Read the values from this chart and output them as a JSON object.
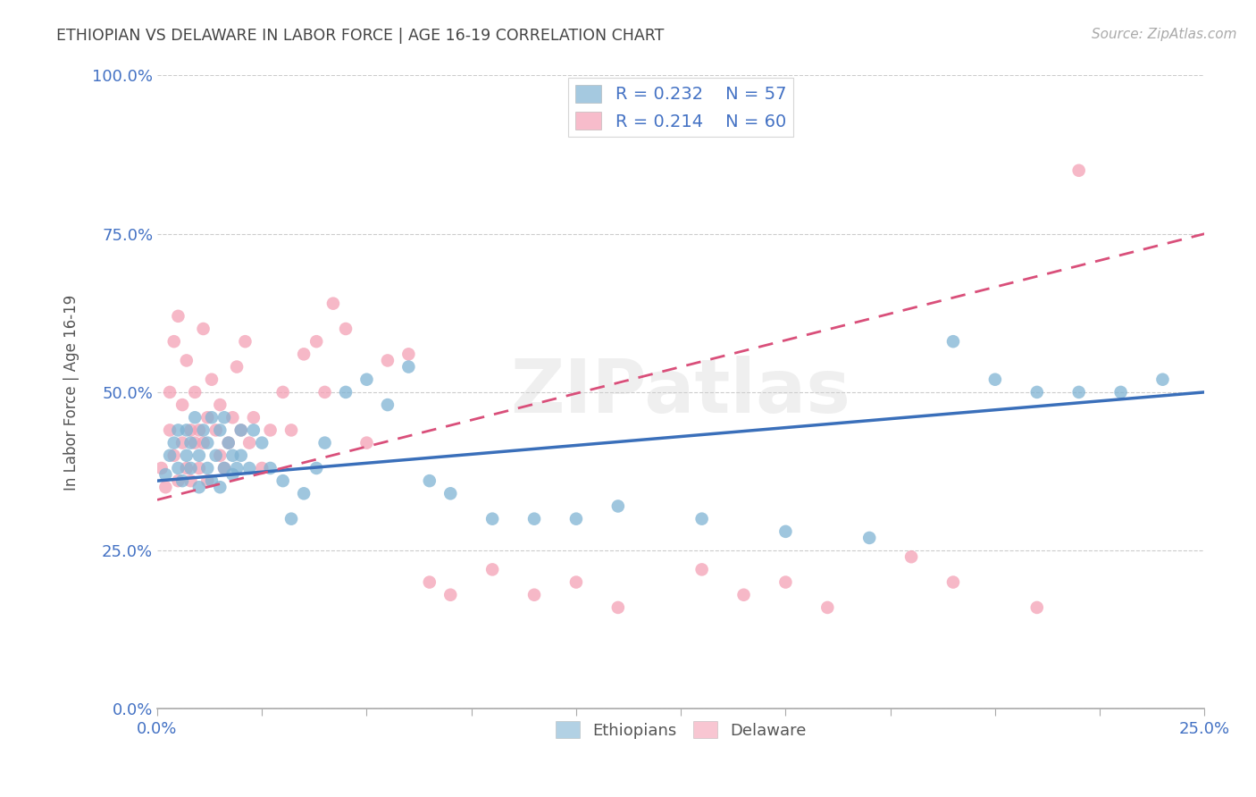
{
  "title": "ETHIOPIAN VS DELAWARE IN LABOR FORCE | AGE 16-19 CORRELATION CHART",
  "source_text": "Source: ZipAtlas.com",
  "ylabel": "In Labor Force | Age 16-19",
  "xlim": [
    0.0,
    0.25
  ],
  "ylim": [
    0.0,
    1.0
  ],
  "yticks": [
    0.0,
    0.25,
    0.5,
    0.75,
    1.0
  ],
  "ytick_labels": [
    "0.0%",
    "25.0%",
    "50.0%",
    "75.0%",
    "100.0%"
  ],
  "watermark": "ZIPatlas",
  "blue_dot_color": "#7fb3d3",
  "pink_dot_color": "#f4a0b5",
  "trend_blue_color": "#3a6fba",
  "trend_pink_color": "#d94f7a",
  "axis_color": "#4472c4",
  "title_color": "#444444",
  "grid_color": "#cccccc",
  "blue_scatter_x": [
    0.002,
    0.003,
    0.004,
    0.005,
    0.005,
    0.006,
    0.007,
    0.007,
    0.008,
    0.008,
    0.009,
    0.01,
    0.01,
    0.011,
    0.012,
    0.012,
    0.013,
    0.013,
    0.014,
    0.015,
    0.015,
    0.016,
    0.016,
    0.017,
    0.018,
    0.018,
    0.019,
    0.02,
    0.02,
    0.022,
    0.023,
    0.025,
    0.027,
    0.03,
    0.032,
    0.035,
    0.038,
    0.04,
    0.045,
    0.05,
    0.055,
    0.06,
    0.065,
    0.07,
    0.08,
    0.09,
    0.1,
    0.11,
    0.13,
    0.15,
    0.17,
    0.19,
    0.2,
    0.21,
    0.22,
    0.23,
    0.24
  ],
  "blue_scatter_y": [
    0.37,
    0.4,
    0.42,
    0.38,
    0.44,
    0.36,
    0.4,
    0.44,
    0.38,
    0.42,
    0.46,
    0.35,
    0.4,
    0.44,
    0.38,
    0.42,
    0.36,
    0.46,
    0.4,
    0.35,
    0.44,
    0.38,
    0.46,
    0.42,
    0.37,
    0.4,
    0.38,
    0.44,
    0.4,
    0.38,
    0.44,
    0.42,
    0.38,
    0.36,
    0.3,
    0.34,
    0.38,
    0.42,
    0.5,
    0.52,
    0.48,
    0.54,
    0.36,
    0.34,
    0.3,
    0.3,
    0.3,
    0.32,
    0.3,
    0.28,
    0.27,
    0.58,
    0.52,
    0.5,
    0.5,
    0.5,
    0.52
  ],
  "pink_scatter_x": [
    0.001,
    0.002,
    0.003,
    0.003,
    0.004,
    0.004,
    0.005,
    0.005,
    0.006,
    0.006,
    0.007,
    0.007,
    0.008,
    0.008,
    0.009,
    0.009,
    0.01,
    0.01,
    0.011,
    0.011,
    0.012,
    0.012,
    0.013,
    0.014,
    0.015,
    0.015,
    0.016,
    0.017,
    0.018,
    0.019,
    0.02,
    0.021,
    0.022,
    0.023,
    0.025,
    0.027,
    0.03,
    0.032,
    0.035,
    0.038,
    0.04,
    0.042,
    0.045,
    0.05,
    0.055,
    0.06,
    0.065,
    0.07,
    0.08,
    0.09,
    0.1,
    0.11,
    0.13,
    0.14,
    0.15,
    0.16,
    0.18,
    0.19,
    0.21,
    0.22
  ],
  "pink_scatter_y": [
    0.38,
    0.35,
    0.44,
    0.5,
    0.4,
    0.58,
    0.36,
    0.62,
    0.42,
    0.48,
    0.38,
    0.55,
    0.44,
    0.36,
    0.5,
    0.42,
    0.38,
    0.44,
    0.6,
    0.42,
    0.46,
    0.36,
    0.52,
    0.44,
    0.4,
    0.48,
    0.38,
    0.42,
    0.46,
    0.54,
    0.44,
    0.58,
    0.42,
    0.46,
    0.38,
    0.44,
    0.5,
    0.44,
    0.56,
    0.58,
    0.5,
    0.64,
    0.6,
    0.42,
    0.55,
    0.56,
    0.2,
    0.18,
    0.22,
    0.18,
    0.2,
    0.16,
    0.22,
    0.18,
    0.2,
    0.16,
    0.24,
    0.2,
    0.16,
    0.85
  ],
  "trend_blue_x0": 0.0,
  "trend_blue_y0": 0.36,
  "trend_blue_x1": 0.25,
  "trend_blue_y1": 0.5,
  "trend_pink_x0": 0.0,
  "trend_pink_y0": 0.33,
  "trend_pink_x1": 0.25,
  "trend_pink_y1": 0.75
}
